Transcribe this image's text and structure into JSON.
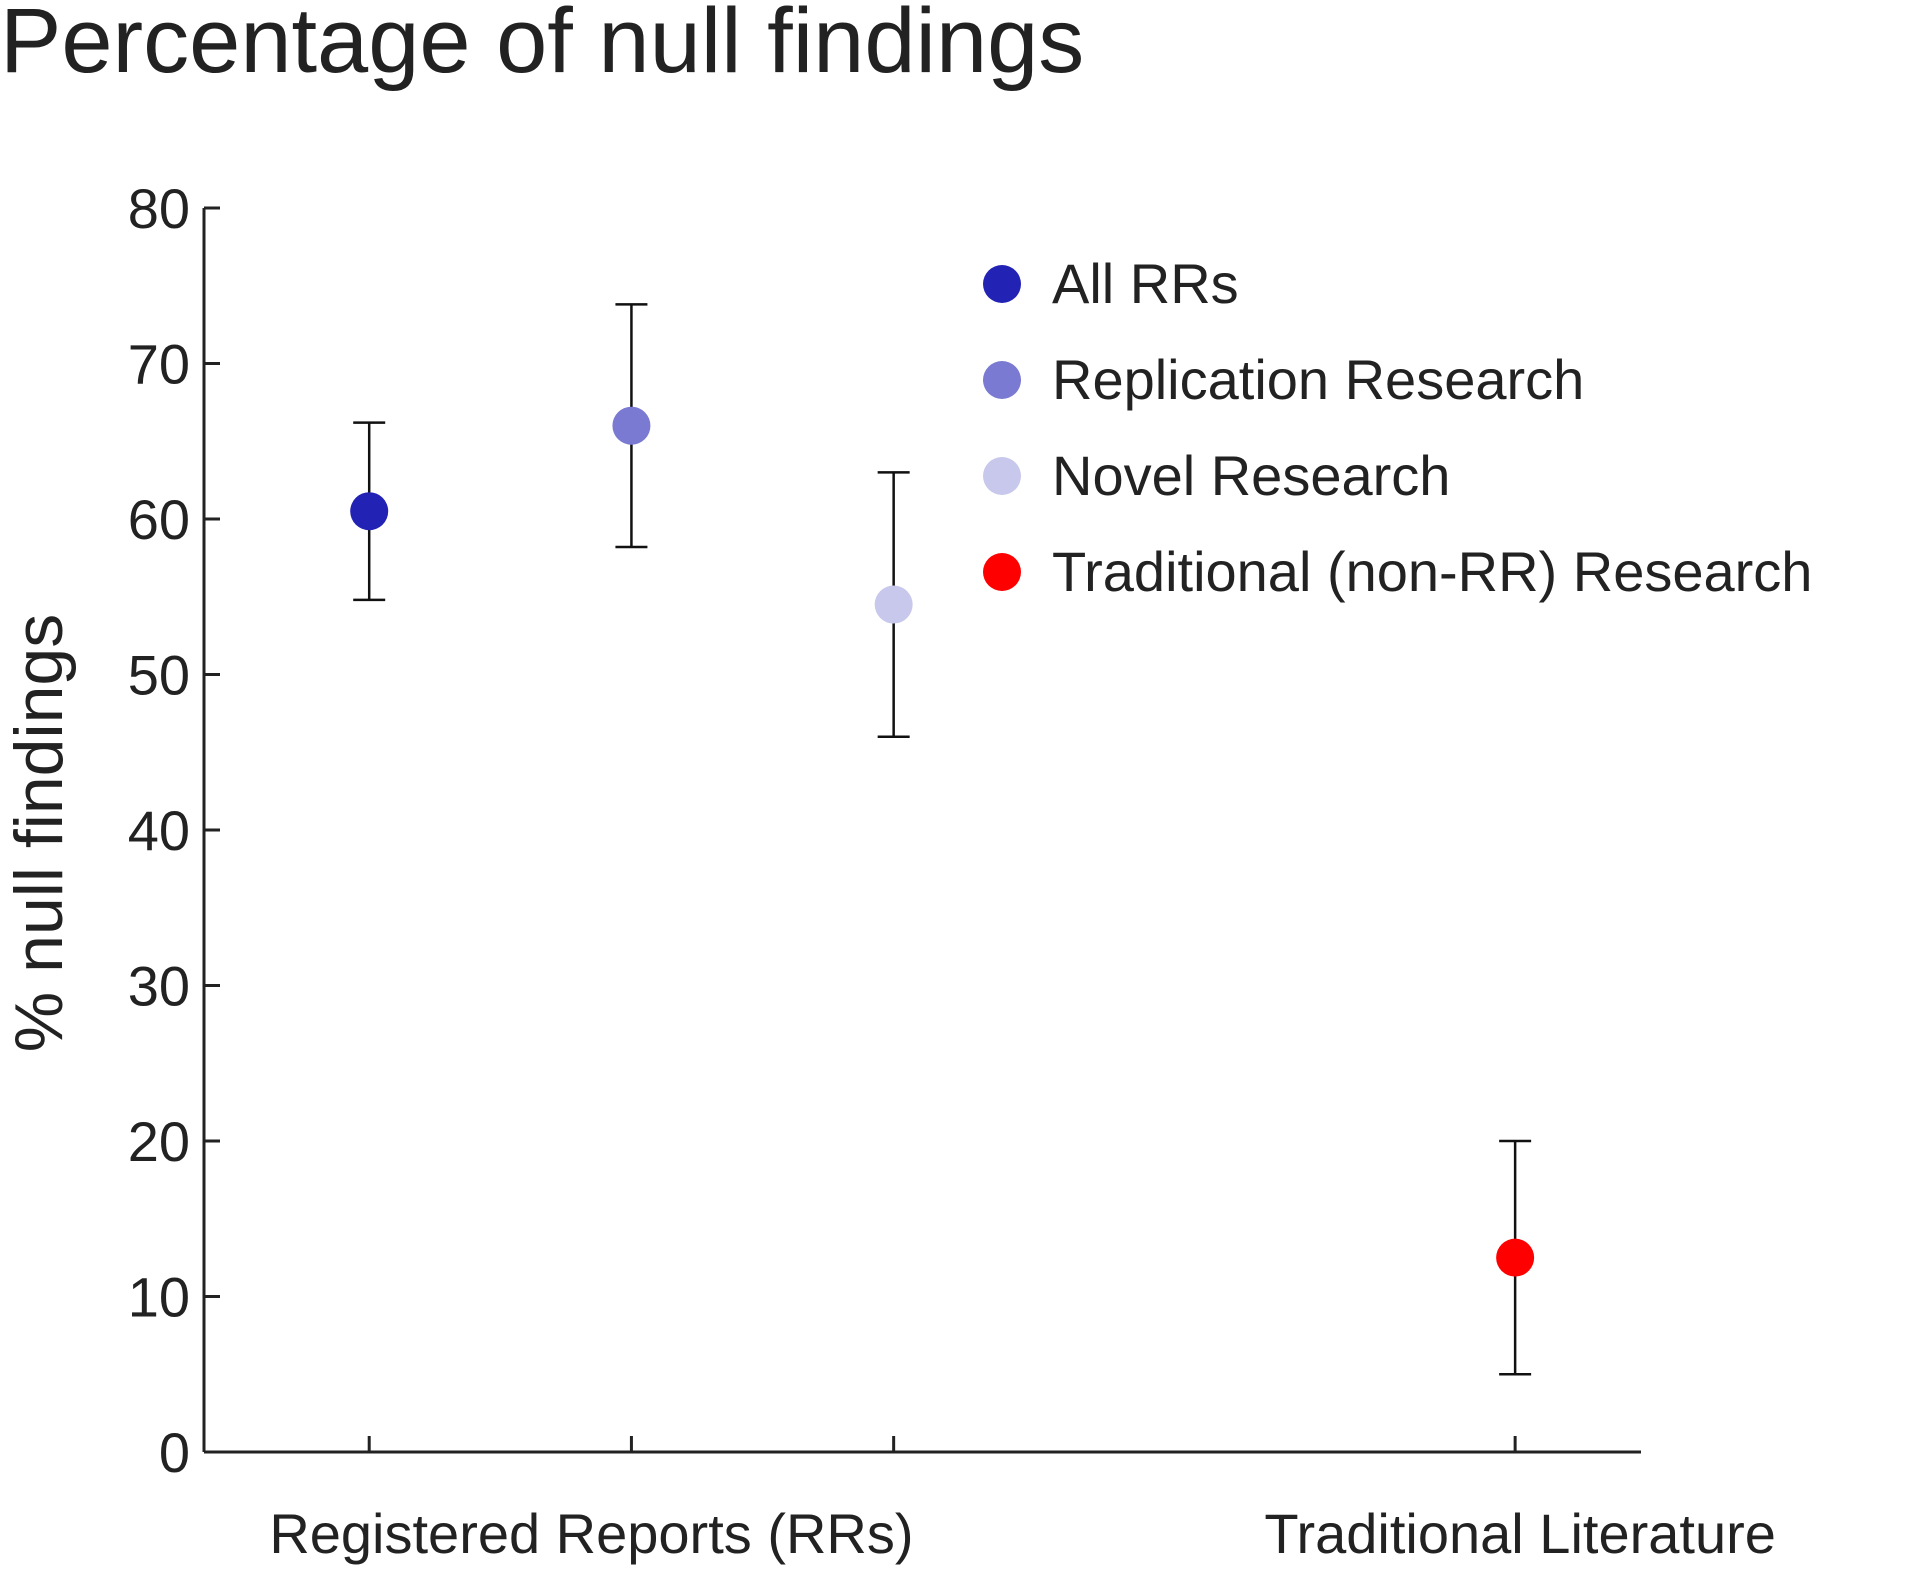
{
  "chart_data": {
    "type": "errorbar",
    "title": "Percentage of null findings",
    "ylabel": "% null findings",
    "ylim": [
      0,
      80
    ],
    "yticks": [
      0,
      10,
      20,
      30,
      40,
      50,
      60,
      70,
      80
    ],
    "xlim": [
      0.37,
      5.85
    ],
    "groups": [
      "Registered Reports (RRs)",
      "Traditional Literature"
    ],
    "legend": "upper right",
    "series": [
      {
        "name": "All RRs",
        "color": "#2222b4",
        "x": [
          1
        ],
        "values": [
          60.5
        ],
        "lower": [
          54.8
        ],
        "upper": [
          66.2
        ]
      },
      {
        "name": "Replication Research",
        "color": "#7a7ad2",
        "x": [
          2
        ],
        "values": [
          66
        ],
        "lower": [
          58.2
        ],
        "upper": [
          73.8
        ]
      },
      {
        "name": "Novel Research",
        "color": "#c8c8ec",
        "x": [
          3
        ],
        "values": [
          54.5
        ],
        "lower": [
          46
        ],
        "upper": [
          63
        ]
      },
      {
        "name": "Traditional (non-RR) Research",
        "color": "#ff0000",
        "x": [
          5.37
        ],
        "values": [
          12.5
        ],
        "lower": [
          5
        ],
        "upper": [
          20
        ]
      }
    ]
  }
}
